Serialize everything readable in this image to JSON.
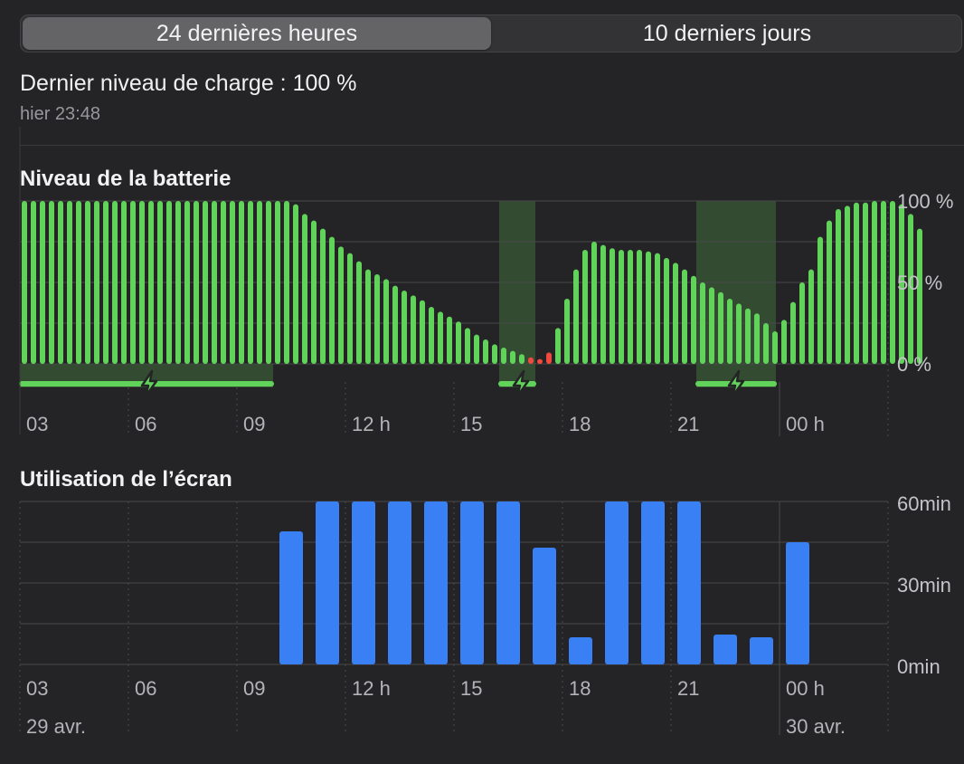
{
  "tabs": [
    {
      "label": "24 dernières heures",
      "active": true
    },
    {
      "label": "10 derniers jours",
      "active": false
    }
  ],
  "charge": {
    "title": "Dernier niveau de charge : 100 %",
    "time": "hier 23:48"
  },
  "colors": {
    "battery_bar": "#61d35a",
    "battery_low": "#f04a3e",
    "charging": "#61d35a",
    "screen_bar": "#3a80f5"
  },
  "chart_data": [
    {
      "type": "bar",
      "title": "Niveau de la batterie",
      "unit": "%",
      "y_ticks": [
        "100 %",
        "50 %",
        "0 %"
      ],
      "ylim": [
        0,
        100
      ],
      "x_ticks": [
        "03",
        "06",
        "09",
        "12 h",
        "15",
        "18",
        "21",
        "00 h"
      ],
      "x_range_hours": [
        2.5,
        26.5
      ],
      "bar_interval_minutes": 15,
      "values": [
        100,
        100,
        100,
        100,
        100,
        100,
        100,
        100,
        100,
        100,
        100,
        100,
        100,
        100,
        100,
        100,
        100,
        100,
        100,
        100,
        100,
        100,
        100,
        100,
        100,
        100,
        100,
        100,
        100,
        100,
        98,
        92,
        88,
        83,
        78,
        72,
        68,
        63,
        58,
        55,
        52,
        48,
        45,
        42,
        39,
        35,
        32,
        29,
        26,
        22,
        18,
        15,
        12,
        10,
        8,
        6,
        4,
        3,
        7,
        22,
        40,
        58,
        70,
        75,
        73,
        71,
        70,
        70,
        70,
        69,
        68,
        65,
        62,
        58,
        54,
        50,
        47,
        44,
        40,
        37,
        34,
        31,
        25,
        20,
        27,
        38,
        50,
        58,
        78,
        88,
        95,
        97,
        99,
        99,
        100,
        100,
        100,
        98,
        92,
        83
      ],
      "low_indices": [
        56,
        57,
        58
      ],
      "low_threshold_note": "bars in red",
      "charging_periods_hours": [
        [
          2.5,
          9.5
        ],
        [
          15.75,
          16.75
        ],
        [
          21.2,
          23.4
        ]
      ],
      "charging_bands_hours": [
        [
          15.75,
          16.75
        ],
        [
          21.2,
          23.4
        ]
      ]
    },
    {
      "type": "bar",
      "title": "Utilisation de l’écran",
      "unit": "min",
      "y_ticks": [
        "60min",
        "30min",
        "0min"
      ],
      "ylim": [
        0,
        60
      ],
      "x_ticks": [
        "03",
        "06",
        "09",
        "12 h",
        "15",
        "18",
        "21",
        "00 h"
      ],
      "date_labels": [
        "29 avr.",
        "30 avr."
      ],
      "hour_start": [
        10,
        11,
        12,
        13,
        14,
        15,
        16,
        17,
        18,
        19,
        20,
        21,
        22,
        23,
        0
      ],
      "values": [
        49,
        60,
        60,
        60,
        60,
        60,
        60,
        43,
        10,
        60,
        60,
        60,
        11,
        10,
        45
      ]
    }
  ]
}
